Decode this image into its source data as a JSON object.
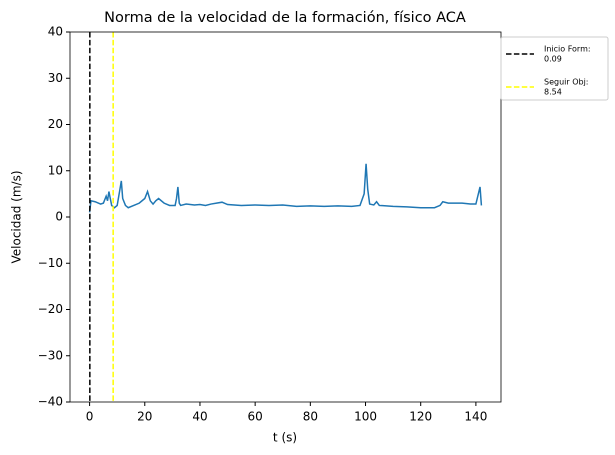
{
  "chart_data": {
    "type": "line",
    "title": "Norma de la velocidad de la formación, físico ACA",
    "x_label": "t (s)",
    "y_label": "Velocidad (m/s)",
    "x": [
      0,
      0.5,
      2,
      4,
      5,
      6,
      6.5,
      7,
      7.5,
      8,
      9,
      10,
      11,
      11.5,
      12,
      13,
      14,
      16,
      18,
      20,
      21,
      22,
      23,
      24,
      25,
      27,
      29,
      31,
      31.5,
      32,
      32.5,
      33,
      35,
      38,
      40,
      42,
      44,
      46,
      48,
      50,
      55,
      60,
      65,
      70,
      75,
      80,
      85,
      90,
      95,
      98,
      99.5,
      100.2,
      100.8,
      101.5,
      103,
      104,
      105,
      110,
      115,
      120,
      125,
      127,
      128,
      130,
      135,
      138,
      140,
      141.5,
      142
    ],
    "series": [
      {
        "name": "Velocidad",
        "color": "#1f77b4",
        "values": [
          1,
          3.5,
          3.3,
          2.8,
          3,
          4.5,
          3.5,
          5.5,
          4,
          2.5,
          2,
          2.5,
          6,
          7.8,
          4,
          2.5,
          2,
          2.5,
          3,
          4,
          5.5,
          3.5,
          2.8,
          3.5,
          4,
          3,
          2.5,
          2.5,
          4,
          6.5,
          3,
          2.5,
          2.8,
          2.6,
          2.7,
          2.5,
          2.8,
          3,
          3.2,
          2.7,
          2.5,
          2.6,
          2.5,
          2.6,
          2.3,
          2.4,
          2.3,
          2.4,
          2.3,
          2.5,
          5,
          11.5,
          6,
          2.8,
          2.6,
          3.3,
          2.5,
          2.3,
          2.2,
          2,
          2,
          2.5,
          3.3,
          3,
          3,
          2.8,
          2.8,
          6.5,
          2.5
        ]
      }
    ],
    "vlines": [
      {
        "label": "Inicio Form:",
        "value": 0.09,
        "color": "#000000"
      },
      {
        "label": "Seguir Obj:",
        "value": 8.54,
        "color": "#ffff00"
      }
    ],
    "xlim": [
      -7.1,
      149.1
    ],
    "ylim": [
      -40,
      40
    ],
    "xticks": [
      0,
      20,
      40,
      60,
      80,
      100,
      120,
      140
    ],
    "yticks": [
      {
        "value": -40,
        "label": "−40"
      },
      {
        "value": -30,
        "label": "−30"
      },
      {
        "value": -20,
        "label": "−20"
      },
      {
        "value": -10,
        "label": "−10"
      },
      0,
      10,
      20,
      30,
      40
    ]
  }
}
